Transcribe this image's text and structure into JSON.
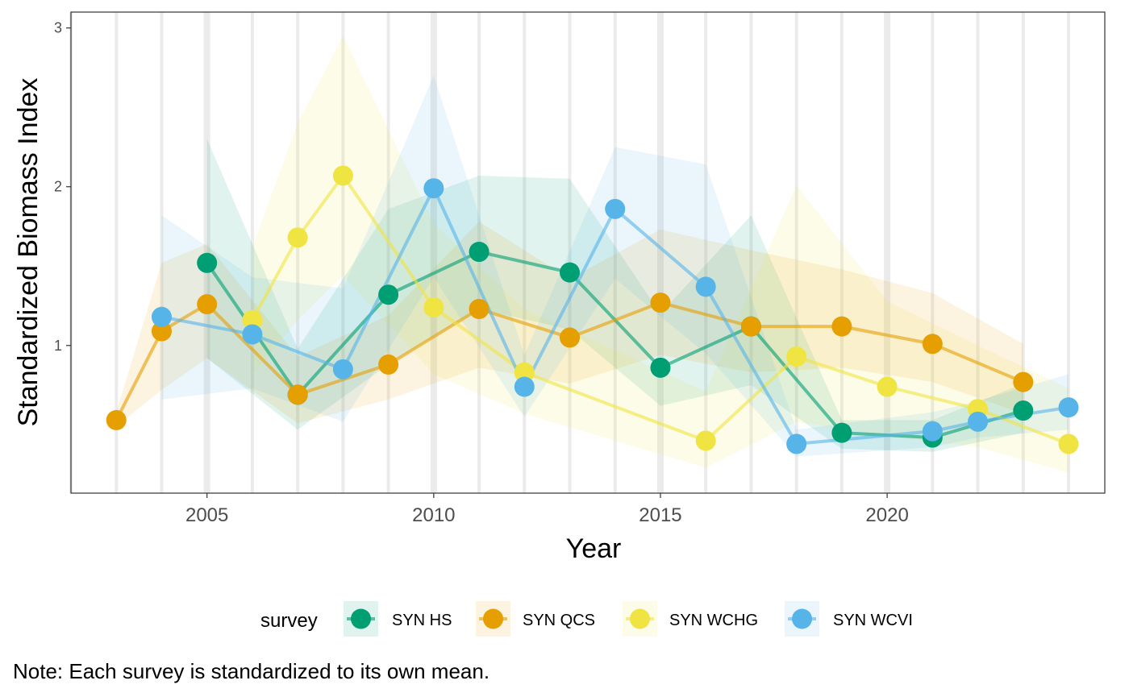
{
  "chart_data": {
    "type": "line",
    "xlabel": "Year",
    "ylabel": "Standardized Biomass Index",
    "xlim": [
      2002.0,
      2024.8
    ],
    "ylim": [
      0.07,
      3.1
    ],
    "xticks": [
      2005,
      2010,
      2015,
      2020
    ],
    "yticks": [
      1,
      2,
      3
    ],
    "grid": true,
    "legend": {
      "title": "survey",
      "position": "bottom"
    },
    "caption": "Note: Each survey is standardized to its own mean.",
    "series": [
      {
        "name": "SYN HS",
        "color": "#009E73",
        "x": [
          2005,
          2007,
          2009,
          2011,
          2013,
          2015,
          2017,
          2019,
          2021,
          2023
        ],
        "y": [
          1.52,
          0.69,
          1.32,
          1.59,
          1.46,
          0.86,
          1.12,
          0.45,
          0.42,
          0.59
        ],
        "lower": [
          0.92,
          0.47,
          0.88,
          1.23,
          1.1,
          0.62,
          0.75,
          0.35,
          0.33,
          0.45
        ],
        "upper": [
          2.3,
          0.98,
          1.86,
          2.07,
          2.05,
          1.2,
          1.82,
          0.53,
          0.53,
          0.76
        ]
      },
      {
        "name": "SYN QCS",
        "color": "#E69F00",
        "x": [
          2003,
          2004,
          2005,
          2007,
          2009,
          2011,
          2013,
          2015,
          2017,
          2019,
          2021,
          2023
        ],
        "y": [
          0.53,
          1.09,
          1.26,
          0.69,
          0.88,
          1.23,
          1.05,
          1.27,
          1.12,
          1.12,
          1.01,
          0.77
        ],
        "lower": [
          0.49,
          0.72,
          0.92,
          0.51,
          0.66,
          0.86,
          0.76,
          0.94,
          0.83,
          0.86,
          0.77,
          0.57
        ],
        "upper": [
          0.58,
          1.52,
          1.64,
          0.93,
          1.19,
          1.78,
          1.42,
          1.73,
          1.6,
          1.48,
          1.33,
          1.01
        ]
      },
      {
        "name": "SYN WCHG",
        "color": "#F0E442",
        "x": [
          2006,
          2007,
          2008,
          2010,
          2012,
          2016,
          2018,
          2020,
          2022,
          2024
        ],
        "y": [
          1.16,
          1.68,
          2.07,
          1.24,
          0.83,
          0.4,
          0.93,
          0.74,
          0.6,
          0.38
        ],
        "lower": [
          0.82,
          1.16,
          1.44,
          0.82,
          0.57,
          0.23,
          0.52,
          0.43,
          0.36,
          0.2
        ],
        "upper": [
          1.62,
          2.4,
          2.95,
          1.77,
          1.23,
          0.71,
          2.01,
          1.28,
          1.0,
          0.73
        ]
      },
      {
        "name": "SYN WCVI",
        "color": "#56B4E9",
        "x": [
          2004,
          2006,
          2008,
          2010,
          2012,
          2014,
          2016,
          2018,
          2021,
          2022,
          2024
        ],
        "y": [
          1.18,
          1.07,
          0.85,
          1.99,
          0.74,
          1.86,
          1.37,
          0.38,
          0.46,
          0.52,
          0.61
        ],
        "lower": [
          0.66,
          0.73,
          0.52,
          1.43,
          0.55,
          1.42,
          0.95,
          0.3,
          0.36,
          0.42,
          0.47
        ],
        "upper": [
          1.82,
          1.43,
          1.36,
          2.7,
          0.94,
          2.25,
          2.14,
          0.47,
          0.58,
          0.65,
          0.82
        ]
      }
    ]
  }
}
